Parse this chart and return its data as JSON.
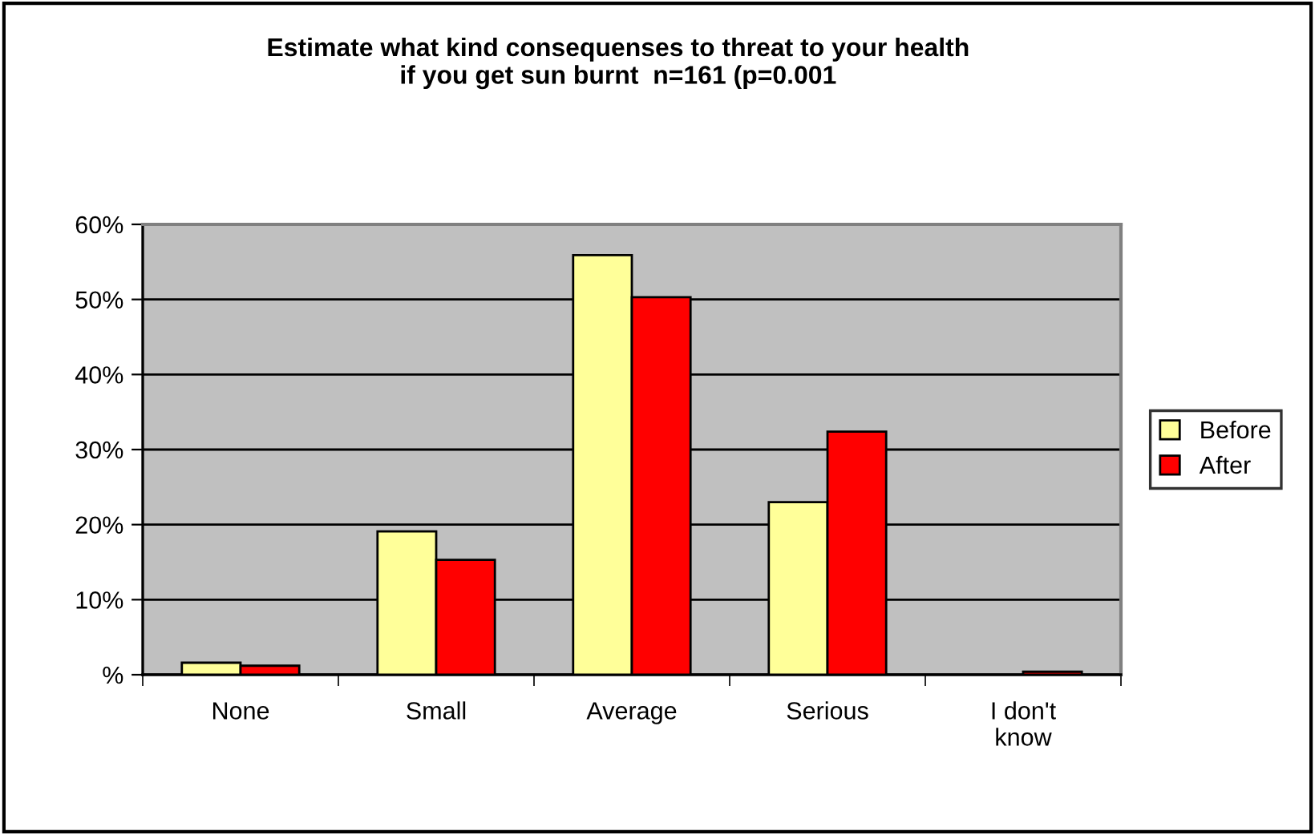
{
  "chart_data": {
    "type": "bar",
    "title": "Estimate what kind consequenses to threat to your health\nif you get sun burnt  n=161 (p=0.001",
    "categories": [
      "None",
      "Small",
      "Average",
      "Serious",
      "I don't\nknow"
    ],
    "series": [
      {
        "name": "Before",
        "color": "#ffff99",
        "values": [
          1.6,
          19.1,
          55.9,
          23.0,
          null
        ]
      },
      {
        "name": "After",
        "color": "#ff0000",
        "values": [
          1.2,
          15.3,
          50.3,
          32.4,
          0.4
        ]
      }
    ],
    "ylim": [
      0,
      60
    ],
    "yticks": [
      {
        "value": 0,
        "label": "%"
      },
      {
        "value": 10,
        "label": "10%"
      },
      {
        "value": 20,
        "label": "20%"
      },
      {
        "value": 30,
        "label": "30%"
      },
      {
        "value": 40,
        "label": "40%"
      },
      {
        "value": 50,
        "label": "50%"
      },
      {
        "value": 60,
        "label": "60%"
      }
    ],
    "grid": "y",
    "legend": "right"
  }
}
